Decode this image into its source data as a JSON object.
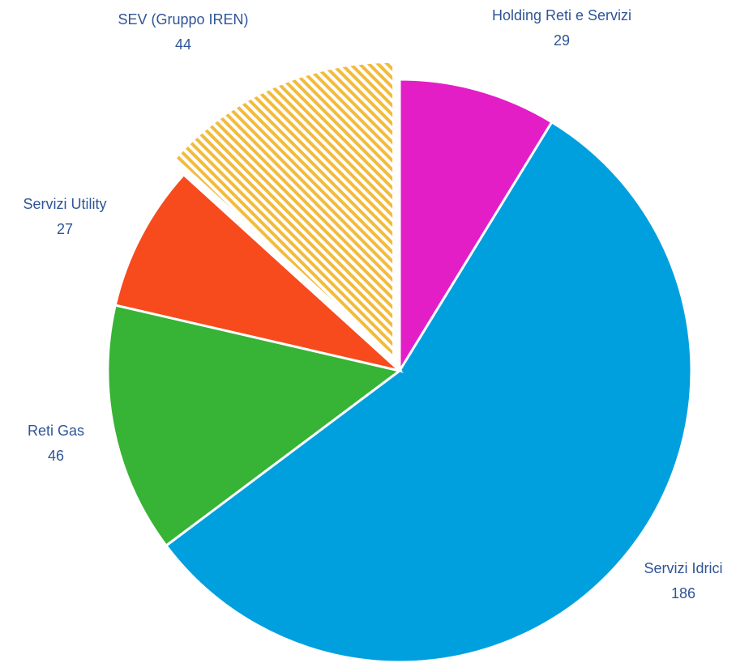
{
  "chart_data": {
    "type": "pie",
    "categories": [
      "Holding Reti e Servizi",
      "Servizi Idrici",
      "Reti Gas",
      "Servizi Utility",
      "SEV (Gruppo IREN)"
    ],
    "values": [
      29,
      186,
      46,
      27,
      44
    ],
    "colors": [
      "#e41ec6",
      "#00a0df",
      "#37b335",
      "#f74a1d",
      "#f2bb3c"
    ]
  }
}
